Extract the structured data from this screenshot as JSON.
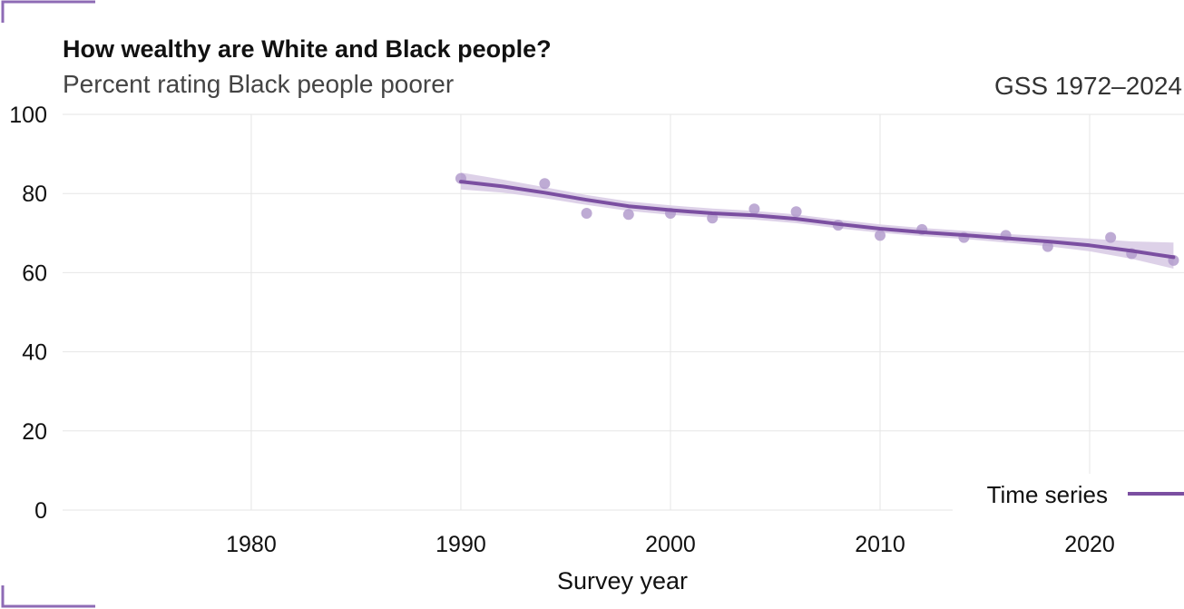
{
  "chart_data": {
    "type": "scatter",
    "title": "How wealthy are White and Black people?",
    "subtitle": "Percent rating Black people poorer",
    "source": "GSS 1972–2024",
    "xlabel": "Survey year",
    "ylabel": "",
    "xlim": [
      1971,
      2024.5
    ],
    "ylim": [
      0,
      100
    ],
    "x_ticks": [
      1980,
      1990,
      2000,
      2010,
      2020
    ],
    "y_ticks": [
      0,
      20,
      40,
      60,
      80,
      100
    ],
    "grid": true,
    "legend": {
      "position": "bottom-right",
      "entries": [
        "Time series"
      ]
    },
    "colors": {
      "series": "#7b4fa1",
      "points": "#b39ccc",
      "band": "#d9cce6",
      "grid": "#e6e6e6",
      "corner": "#8e6bb5"
    },
    "points": {
      "x": [
        1990,
        1994,
        1996,
        1998,
        2000,
        2002,
        2004,
        2006,
        2008,
        2010,
        2012,
        2014,
        2016,
        2018,
        2021,
        2022,
        2024
      ],
      "y": [
        83.8,
        82.5,
        75.0,
        74.7,
        75.0,
        73.8,
        76.1,
        75.4,
        72.0,
        69.4,
        70.9,
        68.9,
        69.4,
        66.6,
        68.9,
        64.8,
        63.1
      ]
    },
    "series": [
      {
        "name": "Time series",
        "x": [
          1990,
          1992,
          1994,
          1996,
          1998,
          2000,
          2002,
          2004,
          2006,
          2008,
          2010,
          2012,
          2014,
          2016,
          2018,
          2020,
          2022,
          2024
        ],
        "y": [
          83.0,
          81.8,
          80.2,
          78.4,
          76.8,
          75.8,
          75.0,
          74.5,
          73.6,
          72.3,
          71.1,
          70.2,
          69.5,
          68.7,
          67.9,
          66.9,
          65.5,
          63.9
        ],
        "lower": [
          81.0,
          80.2,
          78.8,
          77.1,
          75.6,
          74.6,
          73.9,
          73.4,
          72.5,
          71.2,
          70.1,
          69.2,
          68.5,
          67.6,
          66.7,
          65.4,
          63.5,
          61.0
        ],
        "upper": [
          85.3,
          83.5,
          81.6,
          79.6,
          78.0,
          77.0,
          76.2,
          75.6,
          74.7,
          73.4,
          72.2,
          71.3,
          70.6,
          69.8,
          69.2,
          68.6,
          67.9,
          67.6
        ]
      }
    ]
  }
}
